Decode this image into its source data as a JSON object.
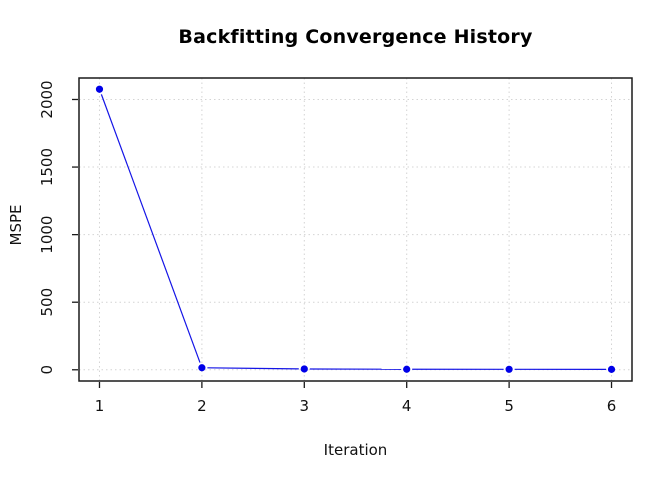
{
  "chart_data": {
    "type": "line",
    "title": "Backfitting Convergence History",
    "xlabel": "Iteration",
    "ylabel": "MSPE",
    "x": [
      1,
      2,
      3,
      4,
      5,
      6
    ],
    "values": [
      2076,
      15,
      6,
      4,
      3.5,
      3
    ],
    "x_ticks": [
      "1",
      "2",
      "3",
      "4",
      "5",
      "6"
    ],
    "y_ticks": [
      "0",
      "500",
      "1000",
      "1500",
      "2000"
    ],
    "y_tick_values": [
      0,
      500,
      1000,
      1500,
      2000
    ],
    "xlim": [
      0.8,
      6.2
    ],
    "ylim": [
      -83,
      2159
    ],
    "grid": "dotted",
    "legend": "none",
    "marker": "filled-circle",
    "line_style": "points-and-lines-with-gaps",
    "line_color": "#1414e6",
    "point_color": "#0000e8",
    "grid_color": "#d4d4d4",
    "axis_color": "#1a1a1a",
    "tick_label_color": "#111111",
    "background_color": "#ffffff"
  }
}
